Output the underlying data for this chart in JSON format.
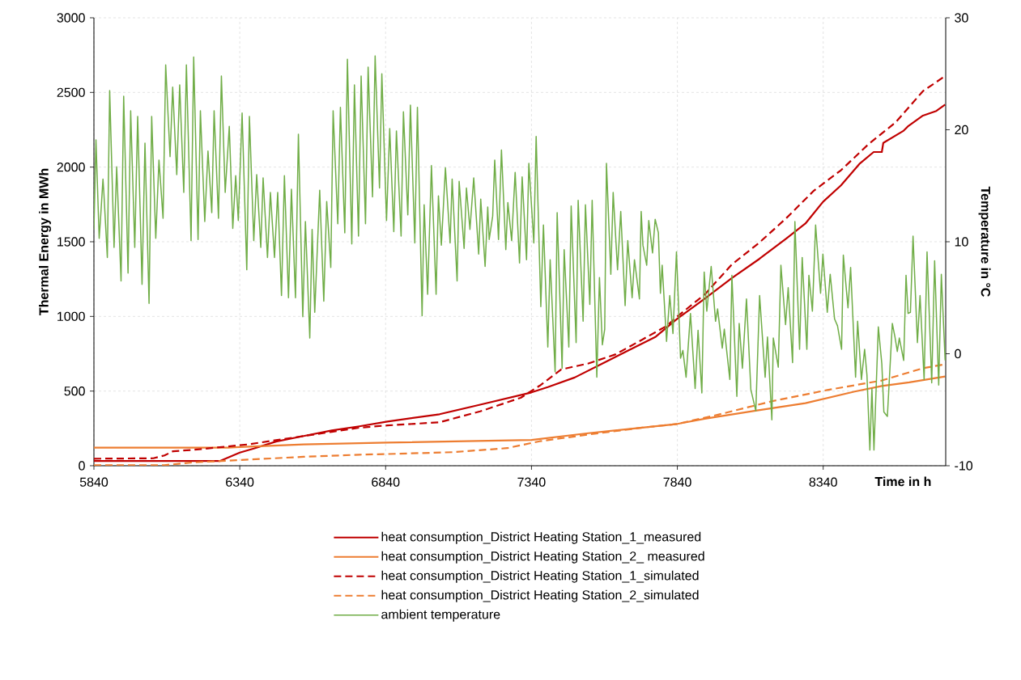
{
  "chart_data": {
    "type": "line",
    "xlabel": "Time in h",
    "ylabel": "Thermal Energy in MWh",
    "y2label": "Temperature in °C",
    "xlim": [
      5840,
      8760
    ],
    "xticks": [
      5840,
      6340,
      6840,
      7340,
      7840,
      8340
    ],
    "ylim": [
      0,
      3000
    ],
    "yticks": [
      0,
      500,
      1000,
      1500,
      2000,
      2500,
      3000
    ],
    "y2lim": [
      -10,
      30
    ],
    "y2ticks": [
      -10,
      0,
      10,
      20,
      30
    ],
    "grid": true,
    "legend": "bottom",
    "series": [
      {
        "name": "heat consumption_District Heating Station_1_measured",
        "color": "#c00000",
        "line_style": "solid",
        "x": [
          5840,
          6273,
          6340,
          6388,
          6464,
          6559,
          6655,
          6750,
          6846,
          7025,
          7164,
          7340,
          7396,
          7488,
          7581,
          7673,
          7766,
          7840,
          7934,
          8027,
          8121,
          8214,
          8279,
          8340,
          8401,
          8466,
          8513,
          8541,
          8546,
          8616,
          8630,
          8682,
          8728,
          8758
        ],
        "values": [
          32,
          32,
          88,
          115,
          162,
          199,
          236,
          264,
          296,
          345,
          409,
          491,
          527,
          591,
          682,
          773,
          864,
          985,
          1119,
          1257,
          1385,
          1522,
          1622,
          1769,
          1878,
          2025,
          2101,
          2101,
          2162,
          2244,
          2272,
          2345,
          2376,
          2418
        ]
      },
      {
        "name": "heat consumption_District Heating Station_2_ measured",
        "color": "#ed7d31",
        "line_style": "solid",
        "x": [
          5840,
          6300,
          6340,
          6559,
          6846,
          7340,
          7535,
          7720,
          7840,
          7934,
          8109,
          8279,
          8448,
          8541,
          8635,
          8758
        ],
        "values": [
          121,
          121,
          125,
          143,
          155,
          173,
          218,
          255,
          280,
          315,
          369,
          419,
          497,
          534,
          558,
          598
        ]
      },
      {
        "name": "heat consumption_District Heating Station_1_simulated",
        "color": "#c00000",
        "line_style": "dashed",
        "x": [
          5840,
          6044,
          6082,
          6111,
          6178,
          6292,
          6369,
          6464,
          6559,
          6655,
          6750,
          6846,
          7025,
          7164,
          7303,
          7368,
          7442,
          7535,
          7627,
          7720,
          7803,
          7840,
          7934,
          8027,
          8121,
          8214,
          8308,
          8401,
          8495,
          8588,
          8682,
          8758
        ],
        "values": [
          47,
          50,
          69,
          97,
          106,
          128,
          143,
          171,
          199,
          227,
          255,
          270,
          291,
          364,
          455,
          536,
          645,
          685,
          745,
          845,
          936,
          1000,
          1147,
          1348,
          1494,
          1659,
          1842,
          1979,
          2153,
          2299,
          2509,
          2610
        ]
      },
      {
        "name": "heat consumption_District Heating Station_2_simulated",
        "color": "#ed7d31",
        "line_style": "dashed",
        "x": [
          5840,
          6082,
          6178,
          6369,
          6559,
          6750,
          6840,
          7072,
          7257,
          7368,
          7535,
          7720,
          7840,
          7980,
          8167,
          8354,
          8541,
          8682,
          8758
        ],
        "values": [
          4,
          4,
          22,
          41,
          60,
          74,
          78,
          91,
          118,
          164,
          209,
          255,
          280,
          342,
          433,
          507,
          571,
          653,
          680
        ]
      },
      {
        "name": "ambient temperature",
        "color": "#70ad47",
        "line_style": "solid",
        "axis": "y2",
        "x": [
          5840,
          5847,
          5858,
          5863,
          5871,
          5874,
          5886,
          5894,
          5909,
          5918,
          5933,
          5942,
          5957,
          5966,
          5980,
          5990,
          6005,
          6015,
          6029,
          6038,
          6052,
          6063,
          6077,
          6086,
          6101,
          6110,
          6124,
          6134,
          6148,
          6157,
          6173,
          6182,
          6197,
          6205,
          6220,
          6231,
          6244,
          6252,
          6267,
          6277,
          6290,
          6304,
          6316,
          6326,
          6335,
          6348,
          6364,
          6373,
          6388,
          6398,
          6412,
          6420,
          6435,
          6445,
          6459,
          6470,
          6483,
          6493,
          6507,
          6517,
          6531,
          6541,
          6556,
          6565,
          6580,
          6588,
          6597,
          6614,
          6628,
          6638,
          6652,
          6660,
          6676,
          6685,
          6700,
          6709,
          6724,
          6733,
          6747,
          6756,
          6771,
          6780,
          6795,
          6804,
          6819,
          6827,
          6843,
          6854,
          6868,
          6877,
          6893,
          6901,
          6916,
          6925,
          6940,
          6949,
          6965,
          6972,
          6984,
          6997,
          7013,
          7021,
          7031,
          7045,
          7061,
          7068,
          7085,
          7092,
          7109,
          7117,
          7129,
          7142,
          7159,
          7166,
          7181,
          7190,
          7195,
          7207,
          7214,
          7227,
          7237,
          7252,
          7259,
          7272,
          7284,
          7299,
          7308,
          7323,
          7331,
          7348,
          7356,
          7372,
          7381,
          7396,
          7404,
          7421,
          7428,
          7445,
          7452,
          7468,
          7476,
          7493,
          7500,
          7517,
          7525,
          7540,
          7548,
          7564,
          7573,
          7583,
          7591,
          7597,
          7612,
          7620,
          7635,
          7646,
          7661,
          7670,
          7685,
          7693,
          7710,
          7716,
          7722,
          7735,
          7742,
          7755,
          7764,
          7775,
          7782,
          7788,
          7803,
          7814,
          7825,
          7837,
          7851,
          7859,
          7870,
          7885,
          7901,
          7911,
          7924,
          7932,
          7941,
          7956,
          7971,
          7978,
          7994,
          8001,
          8020,
          8027,
          8044,
          8052,
          8063,
          8077,
          8092,
          8109,
          8122,
          8141,
          8149,
          8164,
          8169,
          8186,
          8195,
          8211,
          8220,
          8235,
          8243,
          8259,
          8268,
          8284,
          8291,
          8303,
          8314,
          8331,
          8339,
          8354,
          8364,
          8379,
          8389,
          8403,
          8409,
          8425,
          8434,
          8451,
          8458,
          8471,
          8482,
          8490,
          8500,
          8507,
          8514,
          8529,
          8541,
          8548,
          8560,
          8577,
          8586,
          8594,
          8601,
          8616,
          8624,
          8631,
          8639,
          8648,
          8663,
          8672,
          8686,
          8696,
          8712,
          8722,
          8736,
          8745,
          8758
        ],
        "values": [
          11.1,
          19.1,
          10.3,
          12.2,
          15.6,
          14.4,
          8.6,
          23.5,
          9.5,
          16.7,
          6.5,
          23.0,
          7.2,
          21.7,
          9.5,
          21.2,
          6.2,
          18.8,
          4.5,
          21.2,
          10.3,
          17.3,
          12.1,
          25.8,
          17.6,
          23.8,
          16.0,
          24.0,
          14.4,
          25.8,
          10.1,
          26.5,
          10.2,
          21.7,
          11.8,
          18.1,
          12.6,
          21.7,
          12.1,
          24.8,
          14.4,
          20.3,
          11.2,
          15.9,
          11.9,
          21.5,
          7.5,
          21.2,
          10.1,
          16.0,
          9.5,
          15.7,
          8.6,
          14.4,
          8.6,
          14.4,
          5.2,
          15.9,
          5.0,
          14.7,
          5.0,
          19.6,
          3.3,
          11.8,
          1.4,
          11.1,
          3.7,
          14.6,
          4.7,
          13.6,
          7.7,
          21.7,
          11.6,
          22.0,
          10.8,
          26.3,
          9.8,
          24.0,
          10.5,
          24.8,
          11.6,
          25.6,
          14.0,
          26.6,
          14.8,
          25.0,
          11.9,
          20.1,
          10.9,
          19.9,
          10.5,
          21.6,
          12.4,
          22.2,
          9.9,
          22.0,
          3.4,
          13.3,
          5.3,
          16.8,
          5.3,
          14.1,
          9.7,
          16.6,
          9.9,
          15.6,
          6.5,
          15.4,
          9.4,
          14.8,
          11.1,
          15.7,
          8.9,
          13.8,
          7.8,
          13.1,
          10.2,
          12.3,
          17.3,
          10.2,
          18.2,
          9.3,
          13.5,
          10.1,
          16.2,
          8.1,
          15.8,
          8.4,
          17.0,
          9.9,
          19.4,
          4.2,
          11.5,
          0.6,
          8.4,
          -1.6,
          12.6,
          -1.3,
          9.3,
          0.6,
          13.2,
          1.0,
          13.7,
          2.9,
          13.3,
          4.4,
          13.7,
          -2.1,
          6.8,
          0.8,
          2.2,
          17.0,
          7.1,
          14.4,
          7.5,
          12.7,
          4.3,
          10.1,
          5.0,
          8.4,
          4.9,
          12.7,
          9.7,
          7.9,
          11.9,
          9.0,
          12.0,
          10.8,
          5.4,
          7.9,
          1.1,
          5.2,
          1.8,
          9.1,
          -0.4,
          0.3,
          -2.1,
          3.6,
          -3.1,
          2.1,
          -3.5,
          7.3,
          3.8,
          7.8,
          2.9,
          4.0,
          0.5,
          2.2,
          -2.3,
          7.0,
          -3.8,
          2.7,
          -1.3,
          4.9,
          -3.2,
          -5.1,
          5.2,
          -2.1,
          1.5,
          -5.9,
          1.4,
          -1.2,
          7.9,
          2.6,
          5.9,
          -0.8,
          11.8,
          0.4,
          8.6,
          0.4,
          7.0,
          3.8,
          11.5,
          5.4,
          8.9,
          3.7,
          7.1,
          3.1,
          2.5,
          0.4,
          8.8,
          4.1,
          7.7,
          -2.1,
          2.9,
          -2.3,
          0.4,
          -1.9,
          -8.6,
          -3.1,
          -8.6,
          2.4,
          -0.9,
          -5.2,
          -5.6,
          2.7,
          1.5,
          0.2,
          1.4,
          -0.6,
          7.0,
          3.6,
          3.7,
          10.5,
          1.0,
          5.2,
          -2.3,
          9.1,
          -2.6,
          8.3,
          -2.8,
          7.1,
          -0.6
        ]
      }
    ]
  }
}
